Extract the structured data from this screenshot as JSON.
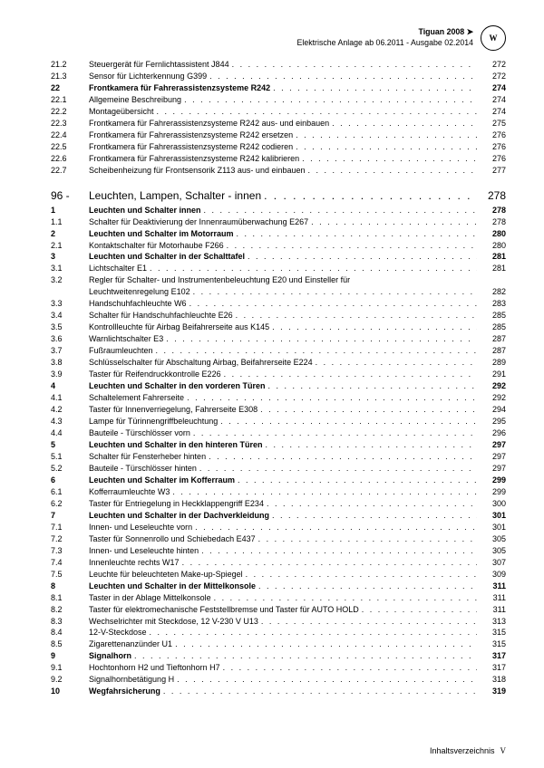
{
  "header": {
    "model": "Tiguan 2008 ➤",
    "subtitle": "Elektrische Anlage ab 06.2011 - Ausgabe 02.2014",
    "logo": "W"
  },
  "footer": {
    "label": "Inhaltsverzeichnis",
    "pagenum": "V"
  },
  "section": {
    "num": "96 -",
    "label": "Leuchten, Lampen, Schalter - innen",
    "page": "278"
  },
  "rows": [
    {
      "n": "21.2",
      "t": "Steuergerät für Fernlichtassistent J844",
      "p": "272",
      "b": 0
    },
    {
      "n": "21.3",
      "t": "Sensor für Lichterkennung G399",
      "p": "272",
      "b": 0
    },
    {
      "n": "22",
      "t": "Frontkamera für Fahrerassistenzsysteme R242",
      "p": "274",
      "b": 1
    },
    {
      "n": "22.1",
      "t": "Allgemeine Beschreibung",
      "p": "274",
      "b": 0
    },
    {
      "n": "22.2",
      "t": "Montageübersicht",
      "p": "274",
      "b": 0
    },
    {
      "n": "22.3",
      "t": "Frontkamera für Fahrerassistenzsysteme R242 aus- und einbauen",
      "p": "275",
      "b": 0
    },
    {
      "n": "22.4",
      "t": "Frontkamera für Fahrerassistenzsysteme R242 ersetzen",
      "p": "276",
      "b": 0
    },
    {
      "n": "22.5",
      "t": "Frontkamera für Fahrerassistenzsysteme R242 codieren",
      "p": "276",
      "b": 0
    },
    {
      "n": "22.6",
      "t": "Frontkamera für Fahrerassistenzsysteme R242 kalibrieren",
      "p": "276",
      "b": 0
    },
    {
      "n": "22.7",
      "t": "Scheibenheizung für Frontsensorik Z113 aus- und einbauen",
      "p": "277",
      "b": 0
    }
  ],
  "rows2": [
    {
      "n": "1",
      "t": "Leuchten und Schalter innen",
      "p": "278",
      "b": 1
    },
    {
      "n": "1.1",
      "t": "Schalter für Deaktivierung der Innenraumüberwachung E267",
      "p": "278",
      "b": 0
    },
    {
      "n": "2",
      "t": "Leuchten und Schalter im Motorraum",
      "p": "280",
      "b": 1
    },
    {
      "n": "2.1",
      "t": "Kontaktschalter für Motorhaube F266",
      "p": "280",
      "b": 0
    },
    {
      "n": "3",
      "t": "Leuchten und Schalter in der Schalttafel",
      "p": "281",
      "b": 1
    },
    {
      "n": "3.1",
      "t": "Lichtschalter E1",
      "p": "281",
      "b": 0
    },
    {
      "n": "3.2",
      "t": "Regler für Schalter- und Instrumentenbeleuchtung E20 und Einsteller für",
      "t2": "Leuchtweitenregelung E102",
      "p": "282",
      "b": 0
    },
    {
      "n": "3.3",
      "t": "Handschuhfachleuchte W6",
      "p": "283",
      "b": 0
    },
    {
      "n": "3.4",
      "t": "Schalter für Handschuhfachleuchte E26",
      "p": "285",
      "b": 0
    },
    {
      "n": "3.5",
      "t": "Kontrollleuchte für Airbag Beifahrerseite aus K145",
      "p": "285",
      "b": 0
    },
    {
      "n": "3.6",
      "t": "Warnlichtschalter E3",
      "p": "287",
      "b": 0
    },
    {
      "n": "3.7",
      "t": "Fußraumleuchten",
      "p": "287",
      "b": 0
    },
    {
      "n": "3.8",
      "t": "Schlüsselschalter für Abschaltung Airbag, Beifahrerseite E224",
      "p": "289",
      "b": 0
    },
    {
      "n": "3.9",
      "t": "Taster für Reifendruckkontrolle E226",
      "p": "291",
      "b": 0
    },
    {
      "n": "4",
      "t": "Leuchten und Schalter in den vorderen Türen",
      "p": "292",
      "b": 1
    },
    {
      "n": "4.1",
      "t": "Schaltelement Fahrerseite",
      "p": "292",
      "b": 0
    },
    {
      "n": "4.2",
      "t": "Taster für Innenverriegelung, Fahrerseite E308",
      "p": "294",
      "b": 0
    },
    {
      "n": "4.3",
      "t": "Lampe für Türinnengriffbeleuchtung",
      "p": "295",
      "b": 0
    },
    {
      "n": "4.4",
      "t": "Bauteile - Türschlösser vorn",
      "p": "296",
      "b": 0
    },
    {
      "n": "5",
      "t": "Leuchten und Schalter in den hinteren Türen",
      "p": "297",
      "b": 1
    },
    {
      "n": "5.1",
      "t": "Schalter für Fensterheber hinten",
      "p": "297",
      "b": 0
    },
    {
      "n": "5.2",
      "t": "Bauteile - Türschlösser hinten",
      "p": "297",
      "b": 0
    },
    {
      "n": "6",
      "t": "Leuchten und Schalter im Kofferraum",
      "p": "299",
      "b": 1
    },
    {
      "n": "6.1",
      "t": "Kofferraumleuchte W3",
      "p": "299",
      "b": 0
    },
    {
      "n": "6.2",
      "t": "Taster für Entriegelung in Heckklappengriff E234",
      "p": "300",
      "b": 0
    },
    {
      "n": "7",
      "t": "Leuchten und Schalter in der Dachverkleidung",
      "p": "301",
      "b": 1
    },
    {
      "n": "7.1",
      "t": "Innen- und Leseleuchte vorn",
      "p": "301",
      "b": 0
    },
    {
      "n": "7.2",
      "t": "Taster für Sonnenrollo und Schiebedach E437",
      "p": "305",
      "b": 0
    },
    {
      "n": "7.3",
      "t": "Innen- und Leseleuchte hinten",
      "p": "305",
      "b": 0
    },
    {
      "n": "7.4",
      "t": "Innenleuchte rechts W17",
      "p": "307",
      "b": 0
    },
    {
      "n": "7.5",
      "t": "Leuchte für beleuchteten Make-up-Spiegel",
      "p": "309",
      "b": 0
    },
    {
      "n": "8",
      "t": "Leuchten und Schalter in der Mittelkonsole",
      "p": "311",
      "b": 1
    },
    {
      "n": "8.1",
      "t": "Taster in der Ablage Mittelkonsole",
      "p": "311",
      "b": 0
    },
    {
      "n": "8.2",
      "t": "Taster für elektromechanische Feststellbremse und Taster für AUTO HOLD",
      "p": "311",
      "b": 0
    },
    {
      "n": "8.3",
      "t": "Wechselrichter mit Steckdose, 12 V-230 V U13",
      "p": "313",
      "b": 0
    },
    {
      "n": "8.4",
      "t": "12-V-Steckdose",
      "p": "315",
      "b": 0
    },
    {
      "n": "8.5",
      "t": "Zigarettenanzünder U1",
      "p": "315",
      "b": 0
    },
    {
      "n": "9",
      "t": "Signalhorn",
      "p": "317",
      "b": 1
    },
    {
      "n": "9.1",
      "t": "Hochtonhorn H2 und Tieftonhorn H7",
      "p": "317",
      "b": 0
    },
    {
      "n": "9.2",
      "t": "Signalhornbetätigung H",
      "p": "318",
      "b": 0
    },
    {
      "n": "10",
      "t": "Wegfahrsicherung",
      "p": "319",
      "b": 1
    }
  ]
}
